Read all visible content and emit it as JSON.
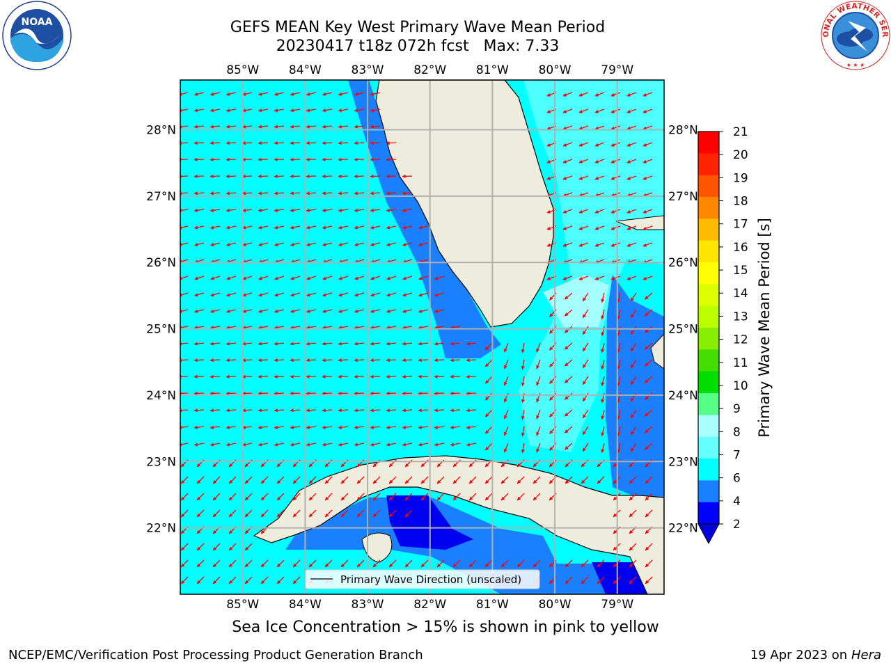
{
  "title": {
    "line1": "GEFS MEAN Key West Primary Wave Mean Period",
    "line2": "20230417 t18z 072h fcst   Max: 7.33"
  },
  "logos": {
    "left": {
      "icon": "noaa-logo",
      "text": "NOAA"
    },
    "right": {
      "icon": "nws-logo",
      "text": "NATIONAL WEATHER SERVICE"
    }
  },
  "map": {
    "lon_labels": [
      "85°W",
      "84°W",
      "83°W",
      "82°W",
      "81°W",
      "80°W",
      "79°W"
    ],
    "lat_labels": [
      "28°N",
      "27°N",
      "26°N",
      "25°N",
      "24°N",
      "23°N",
      "22°N"
    ],
    "lon_range": [
      -86.0,
      -78.25
    ],
    "lat_range": [
      21.0,
      28.75
    ],
    "colors": {
      "land": "#eeecdc",
      "ocean_4_6": "#00ffff",
      "ocean_6_8": "#4dffff",
      "ocean_8_9": "#a6ffff",
      "ocean_2_4": "#1a80ff",
      "ocean_lt_2": "#0000f0",
      "arrows": "#ff0000",
      "grid": "#b0b0b0"
    },
    "legend_label": "Primary Wave Direction (unscaled)"
  },
  "colorbar": {
    "label": "Primary Wave Mean Period [s]",
    "ticks": [
      "21",
      "20",
      "19",
      "18",
      "17",
      "16",
      "15",
      "14",
      "13",
      "12",
      "11",
      "10",
      "9",
      "8",
      "7",
      "6",
      "4",
      "2"
    ],
    "colors": [
      "#ff0000",
      "#ff2200",
      "#ff5500",
      "#ff8800",
      "#ffbb00",
      "#ffe600",
      "#ffff00",
      "#ddff00",
      "#bbff00",
      "#88ee00",
      "#44dd00",
      "#00dd00",
      "#55ff88",
      "#aaffff",
      "#66ffff",
      "#00ffff",
      "#1a80ff",
      "#0000ff"
    ],
    "extend_color": "#0000dd"
  },
  "note": "Sea Ice Concentration > 15% is shown in pink to yellow",
  "footer": {
    "left": "NCEP/EMC/Verification Post Processing Product Generation Branch",
    "right_date": "19 Apr 2023 on ",
    "right_host": "Hera"
  }
}
